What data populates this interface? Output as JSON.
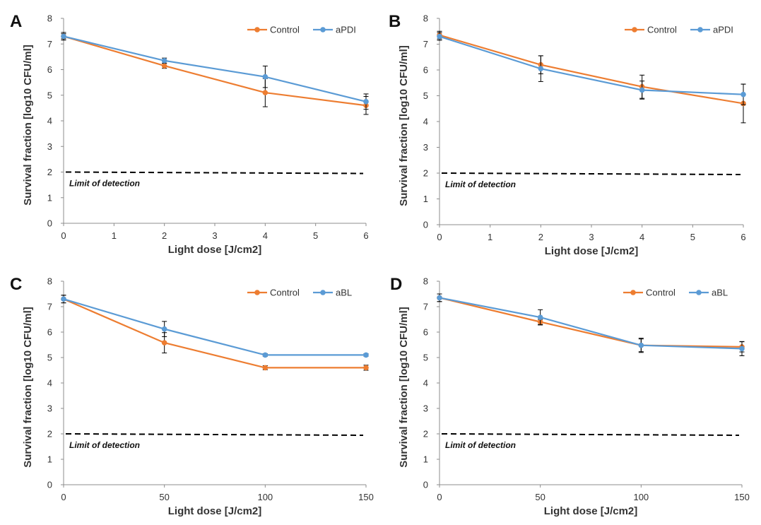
{
  "colors": {
    "control": "#ED7D31",
    "treated": "#5B9BD5",
    "axis": "#8c8c8c",
    "errorbar": "#000000",
    "lod": "#000000"
  },
  "chart_data": [
    {
      "type": "line",
      "panel": "A",
      "xlabel": "Light dose [J/cm2]",
      "ylabel": "Survival fraction [log10 CFU/ml]",
      "x": [
        0,
        2,
        4,
        6
      ],
      "xlim": [
        0,
        6
      ],
      "xticks": [
        "0",
        "1",
        "2",
        "3",
        "4",
        "5",
        "6"
      ],
      "ylim": [
        0,
        8
      ],
      "yticks": [
        "0",
        "1",
        "2",
        "3",
        "4",
        "5",
        "6",
        "7",
        "8"
      ],
      "legend_position": "top-right",
      "series": [
        {
          "name": "Control",
          "values": [
            7.3,
            6.15,
            5.1,
            4.6
          ],
          "errors": [
            0.1,
            0.1,
            0.55,
            0.35
          ]
        },
        {
          "name": "aPDI",
          "values": [
            7.3,
            6.35,
            5.72,
            4.75
          ],
          "errors": [
            0.15,
            0.1,
            0.42,
            0.3
          ]
        }
      ],
      "reference_line": {
        "y": 2,
        "label": "Limit of detection"
      }
    },
    {
      "type": "line",
      "panel": "B",
      "xlabel": "Light dose [J/cm2]",
      "ylabel": "Survival fraction [log10 CFU/ml]",
      "x": [
        0,
        2,
        4,
        6
      ],
      "xlim": [
        0,
        6
      ],
      "xticks": [
        "0",
        "1",
        "2",
        "3",
        "4",
        "5",
        "6"
      ],
      "ylim": [
        0,
        8
      ],
      "yticks": [
        "0",
        "1",
        "2",
        "3",
        "4",
        "5",
        "6",
        "7",
        "8"
      ],
      "legend_position": "top-right",
      "series": [
        {
          "name": "Control",
          "values": [
            7.35,
            6.2,
            5.35,
            4.7
          ],
          "errors": [
            0.15,
            0.35,
            0.45,
            0.75
          ]
        },
        {
          "name": "aPDI",
          "values": [
            7.3,
            6.05,
            5.22,
            5.05
          ],
          "errors": [
            0.15,
            0.5,
            0.35,
            0.4
          ]
        }
      ],
      "reference_line": {
        "y": 2,
        "label": "Limit of detection"
      }
    },
    {
      "type": "line",
      "panel": "C",
      "xlabel": "Light dose [J/cm2]",
      "ylabel": "Survival fraction [log10 CFU/ml]",
      "x": [
        0,
        50,
        100,
        150
      ],
      "xlim": [
        0,
        150
      ],
      "xticks": [
        "0",
        "50",
        "100",
        "150"
      ],
      "ylim": [
        0,
        8
      ],
      "yticks": [
        "0",
        "1",
        "2",
        "3",
        "4",
        "5",
        "6",
        "7",
        "8"
      ],
      "legend_position": "top-right",
      "series": [
        {
          "name": "Control",
          "values": [
            7.3,
            5.58,
            4.6,
            4.6
          ],
          "errors": [
            0.15,
            0.4,
            0.08,
            0.1
          ]
        },
        {
          "name": "aBL",
          "values": [
            7.3,
            6.12,
            5.1,
            5.1
          ],
          "errors": [
            0.15,
            0.3,
            0.05,
            0.05
          ]
        }
      ],
      "reference_line": {
        "y": 2,
        "label": "Limit of detection"
      }
    },
    {
      "type": "line",
      "panel": "D",
      "xlabel": "Light dose [J/cm2]",
      "ylabel": "Survival fraction [log10 CFU/ml]",
      "x": [
        0,
        50,
        100,
        150
      ],
      "xlim": [
        0,
        150
      ],
      "xticks": [
        "0",
        "50",
        "100",
        "150"
      ],
      "ylim": [
        0,
        8
      ],
      "yticks": [
        "0",
        "1",
        "2",
        "3",
        "4",
        "5",
        "6",
        "7",
        "8"
      ],
      "legend_position": "top-right",
      "series": [
        {
          "name": "Control",
          "values": [
            7.35,
            6.4,
            5.48,
            5.42
          ],
          "errors": [
            0.15,
            0.1,
            0.25,
            0.2
          ]
        },
        {
          "name": "aBL",
          "values": [
            7.35,
            6.58,
            5.48,
            5.35
          ],
          "errors": [
            0.15,
            0.3,
            0.28,
            0.28
          ]
        }
      ],
      "reference_line": {
        "y": 2,
        "label": "Limit of detection"
      }
    }
  ]
}
